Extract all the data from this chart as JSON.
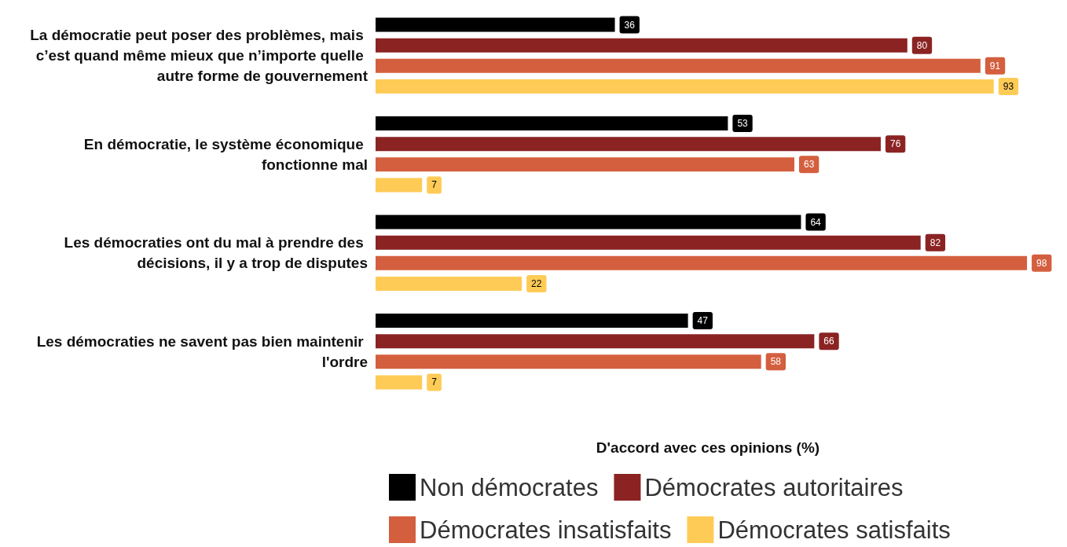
{
  "chart_data": {
    "type": "bar",
    "orientation": "horizontal",
    "xlabel": "D'accord avec ces opinions (%)",
    "categories": [
      "La démocratie peut poser des problèmes, mais c’est quand même mieux que n’importe quelle autre forme de gouvernement",
      "En démocratie, le système économique fonctionne mal",
      "Les démocraties ont du mal à prendre des décisions, il y a trop de disputes",
      "Les démocraties ne savent pas bien maintenir l'ordre"
    ],
    "series": [
      {
        "name": "Non démocrates",
        "color": "#000000",
        "values": [
          36,
          53,
          64,
          47
        ]
      },
      {
        "name": "Démocrates autoritaires",
        "color": "#8b2323",
        "values": [
          80,
          76,
          82,
          66
        ]
      },
      {
        "name": "Démocrates insatisfaits",
        "color": "#d45f3f",
        "values": [
          91,
          63,
          98,
          58
        ]
      },
      {
        "name": "Démocrates satisfaits",
        "color": "#ffcb57",
        "values": [
          93,
          7,
          22,
          7
        ]
      }
    ],
    "tick_labels": "y",
    "data_labels": true,
    "legend": "bottom",
    "grid": false
  }
}
